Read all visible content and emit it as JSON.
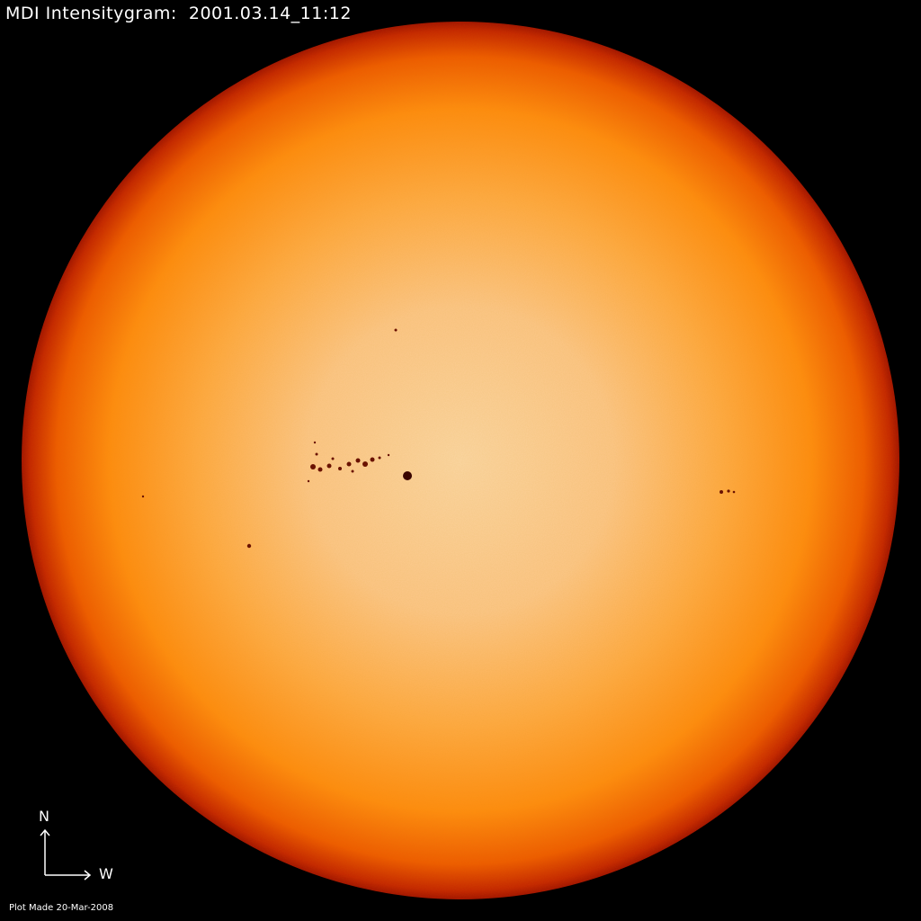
{
  "title": "MDI Intensitygram:  2001.03.14_11:12",
  "plot_made": "Plot Made 20-Mar-2008",
  "compass": {
    "north_label": "N",
    "west_label": "W"
  },
  "colors": {
    "background": "#000000",
    "disk_center": "#fbd6a4",
    "disk_mid": "#ff9c22",
    "disk_limb": "#b81800",
    "sunspot": "#5a0a00"
  }
}
